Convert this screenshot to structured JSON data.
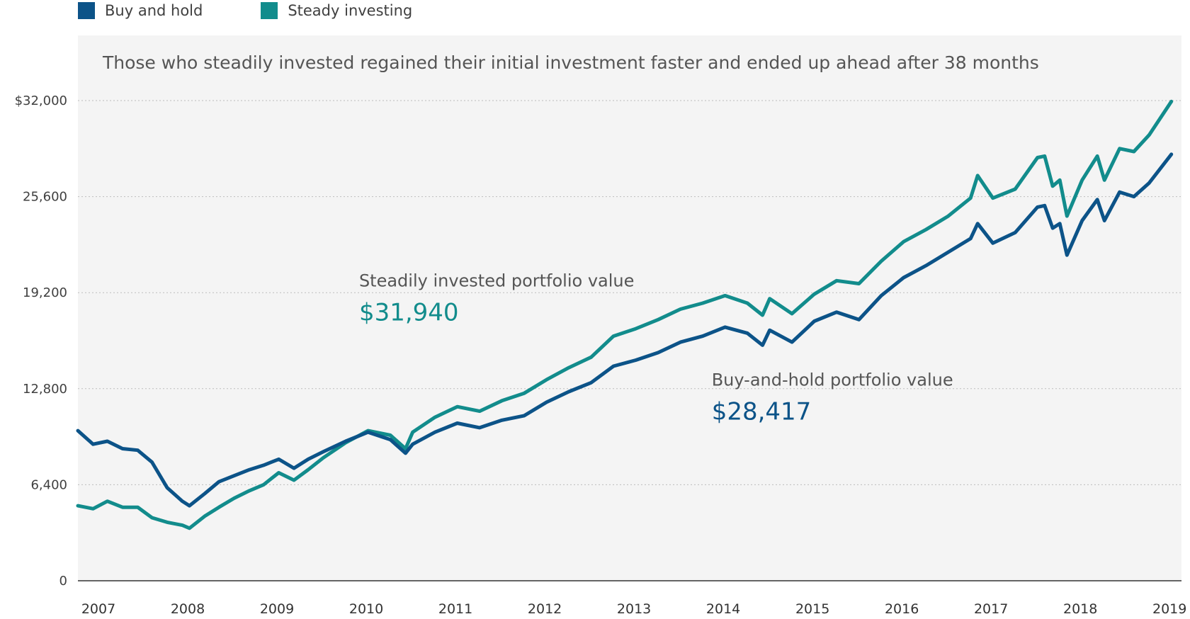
{
  "colors": {
    "buy_and_hold": "#0c5388",
    "steady": "#128c8c",
    "plot_bg": "#f4f4f4",
    "grid": "#bdbdbd",
    "axis": "#333333"
  },
  "legend": [
    {
      "name": "Buy and hold",
      "color": "#0c5388"
    },
    {
      "name": "Steady investing",
      "color": "#128c8c"
    }
  ],
  "chart_data": {
    "type": "line",
    "title": "",
    "subtitle": "Those who steadily invested regained their initial investment faster and ended up ahead after 38 months",
    "xlabel": "",
    "ylabel": "",
    "ylim": [
      0,
      32000
    ],
    "yticks": [
      0,
      6400,
      12800,
      19200,
      25600,
      32000
    ],
    "ytick_labels": [
      "0",
      "6,400",
      "12,800",
      "19,200",
      "25,600",
      "$32,000"
    ],
    "xlim": [
      2007.0,
      2019.3
    ],
    "xticks": [
      2007,
      2008,
      2009,
      2010,
      2011,
      2012,
      2013,
      2014,
      2015,
      2016,
      2017,
      2018,
      2019
    ],
    "grid": true,
    "legend_position": "top-left",
    "series": [
      {
        "name": "Buy and hold",
        "points": [
          [
            2007.0,
            10000
          ],
          [
            2007.17,
            9100
          ],
          [
            2007.33,
            9300
          ],
          [
            2007.5,
            8800
          ],
          [
            2007.67,
            8700
          ],
          [
            2007.83,
            7900
          ],
          [
            2008.0,
            6200
          ],
          [
            2008.17,
            5300
          ],
          [
            2008.25,
            5000
          ],
          [
            2008.42,
            5800
          ],
          [
            2008.58,
            6600
          ],
          [
            2008.75,
            7000
          ],
          [
            2008.92,
            7400
          ],
          [
            2009.08,
            7700
          ],
          [
            2009.25,
            8100
          ],
          [
            2009.42,
            7500
          ],
          [
            2009.58,
            8100
          ],
          [
            2009.75,
            8600
          ],
          [
            2010.0,
            9300
          ],
          [
            2010.25,
            9900
          ],
          [
            2010.5,
            9400
          ],
          [
            2010.67,
            8500
          ],
          [
            2010.75,
            9100
          ],
          [
            2011.0,
            9900
          ],
          [
            2011.25,
            10500
          ],
          [
            2011.5,
            10200
          ],
          [
            2011.75,
            10700
          ],
          [
            2012.0,
            11000
          ],
          [
            2012.25,
            11900
          ],
          [
            2012.5,
            12600
          ],
          [
            2012.75,
            13200
          ],
          [
            2013.0,
            14300
          ],
          [
            2013.25,
            14700
          ],
          [
            2013.5,
            15200
          ],
          [
            2013.75,
            15900
          ],
          [
            2014.0,
            16300
          ],
          [
            2014.25,
            16900
          ],
          [
            2014.5,
            16500
          ],
          [
            2014.67,
            15700
          ],
          [
            2014.75,
            16700
          ],
          [
            2015.0,
            15900
          ],
          [
            2015.25,
            17300
          ],
          [
            2015.5,
            17900
          ],
          [
            2015.75,
            17400
          ],
          [
            2016.0,
            19000
          ],
          [
            2016.25,
            20200
          ],
          [
            2016.5,
            21000
          ],
          [
            2016.75,
            21900
          ],
          [
            2017.0,
            22800
          ],
          [
            2017.08,
            23800
          ],
          [
            2017.25,
            22500
          ],
          [
            2017.5,
            23200
          ],
          [
            2017.75,
            24900
          ],
          [
            2017.83,
            25000
          ],
          [
            2017.92,
            23500
          ],
          [
            2018.0,
            23800
          ],
          [
            2018.08,
            21700
          ],
          [
            2018.25,
            24000
          ],
          [
            2018.42,
            25400
          ],
          [
            2018.5,
            24000
          ],
          [
            2018.67,
            25900
          ],
          [
            2018.83,
            25600
          ],
          [
            2019.0,
            26500
          ],
          [
            2019.25,
            28417
          ]
        ]
      },
      {
        "name": "Steady investing",
        "points": [
          [
            2007.0,
            5000
          ],
          [
            2007.17,
            4800
          ],
          [
            2007.33,
            5300
          ],
          [
            2007.5,
            4900
          ],
          [
            2007.67,
            4900
          ],
          [
            2007.83,
            4200
          ],
          [
            2008.0,
            3900
          ],
          [
            2008.17,
            3700
          ],
          [
            2008.25,
            3500
          ],
          [
            2008.42,
            4300
          ],
          [
            2008.58,
            4900
          ],
          [
            2008.75,
            5500
          ],
          [
            2008.92,
            6000
          ],
          [
            2009.08,
            6400
          ],
          [
            2009.25,
            7200
          ],
          [
            2009.42,
            6700
          ],
          [
            2009.58,
            7400
          ],
          [
            2009.75,
            8200
          ],
          [
            2010.0,
            9200
          ],
          [
            2010.25,
            10000
          ],
          [
            2010.5,
            9700
          ],
          [
            2010.67,
            8800
          ],
          [
            2010.75,
            9900
          ],
          [
            2011.0,
            10900
          ],
          [
            2011.25,
            11600
          ],
          [
            2011.5,
            11300
          ],
          [
            2011.75,
            12000
          ],
          [
            2012.0,
            12500
          ],
          [
            2012.25,
            13400
          ],
          [
            2012.5,
            14200
          ],
          [
            2012.75,
            14900
          ],
          [
            2013.0,
            16300
          ],
          [
            2013.25,
            16800
          ],
          [
            2013.5,
            17400
          ],
          [
            2013.75,
            18100
          ],
          [
            2014.0,
            18500
          ],
          [
            2014.25,
            19000
          ],
          [
            2014.5,
            18500
          ],
          [
            2014.67,
            17700
          ],
          [
            2014.75,
            18800
          ],
          [
            2015.0,
            17800
          ],
          [
            2015.25,
            19100
          ],
          [
            2015.5,
            20000
          ],
          [
            2015.75,
            19800
          ],
          [
            2016.0,
            21300
          ],
          [
            2016.25,
            22600
          ],
          [
            2016.5,
            23400
          ],
          [
            2016.75,
            24300
          ],
          [
            2017.0,
            25500
          ],
          [
            2017.08,
            27000
          ],
          [
            2017.25,
            25500
          ],
          [
            2017.5,
            26100
          ],
          [
            2017.75,
            28200
          ],
          [
            2017.83,
            28300
          ],
          [
            2017.92,
            26300
          ],
          [
            2018.0,
            26700
          ],
          [
            2018.08,
            24300
          ],
          [
            2018.25,
            26700
          ],
          [
            2018.42,
            28300
          ],
          [
            2018.5,
            26700
          ],
          [
            2018.67,
            28800
          ],
          [
            2018.83,
            28600
          ],
          [
            2019.0,
            29700
          ],
          [
            2019.25,
            31940
          ]
        ]
      }
    ],
    "annotations": [
      {
        "label": "Steadily invested portfolio value",
        "value": "$31,940",
        "series": "Steady investing",
        "x": 2010.15,
        "y": 19600
      },
      {
        "label": "Buy-and-hold portfolio value",
        "value": "$28,417",
        "series": "Buy and hold",
        "x": 2014.1,
        "y": 13000
      }
    ]
  }
}
